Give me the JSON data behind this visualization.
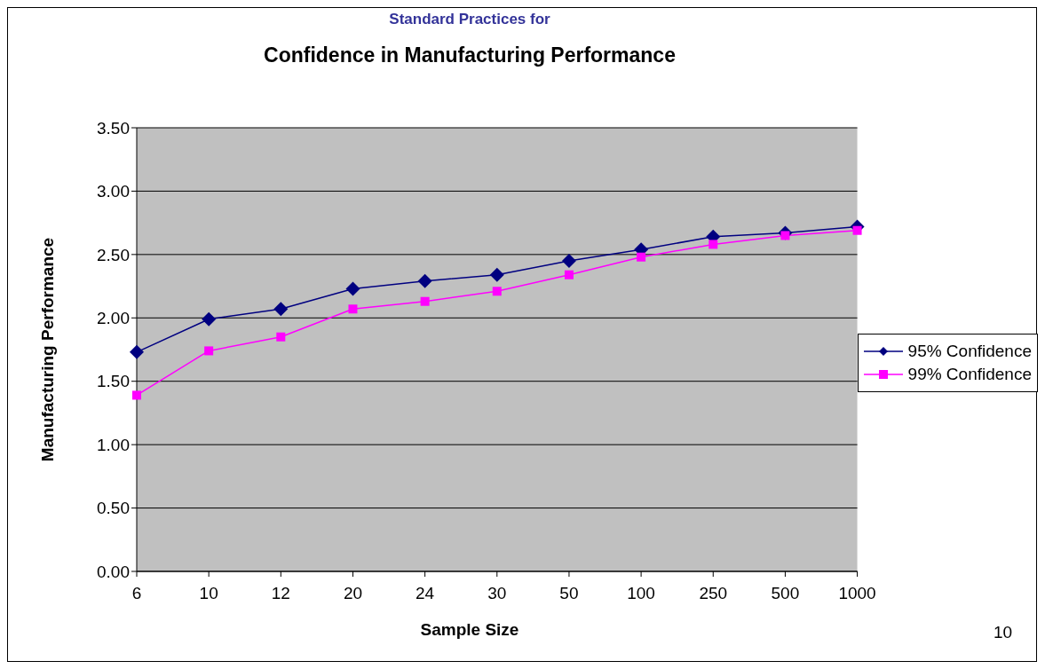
{
  "chart_data": {
    "type": "line",
    "title": "Confidence in Manufacturing Performance",
    "xlabel": "Sample Size",
    "ylabel": "Manufacturing Performance",
    "annotations": [
      "Standard Practices for",
      "10"
    ],
    "categories": [
      "6",
      "10",
      "12",
      "20",
      "24",
      "30",
      "50",
      "100",
      "250",
      "500",
      "1000"
    ],
    "series": [
      {
        "name": "95% Confidence",
        "color": "#000080",
        "marker": "diamond",
        "values": [
          1.73,
          1.99,
          2.07,
          2.23,
          2.29,
          2.34,
          2.45,
          2.54,
          2.64,
          2.67,
          2.72
        ]
      },
      {
        "name": "99% Confidence",
        "color": "#ff00ff",
        "marker": "square",
        "values": [
          1.39,
          1.74,
          1.85,
          2.07,
          2.13,
          2.21,
          2.34,
          2.48,
          2.58,
          2.65,
          2.69
        ]
      }
    ],
    "ylim": [
      0,
      3.5
    ],
    "yticks": [
      {
        "value": 0,
        "label": "0.00"
      },
      {
        "value": 0.5,
        "label": "0.50"
      },
      {
        "value": 1,
        "label": "1.00"
      },
      {
        "value": 1.5,
        "label": "1.50"
      },
      {
        "value": 2,
        "label": "2.00"
      },
      {
        "value": 2.5,
        "label": "2.50"
      },
      {
        "value": 3,
        "label": "3.00"
      },
      {
        "value": 3.5,
        "label": "3.50"
      }
    ],
    "grid": "y",
    "legend": "right"
  }
}
